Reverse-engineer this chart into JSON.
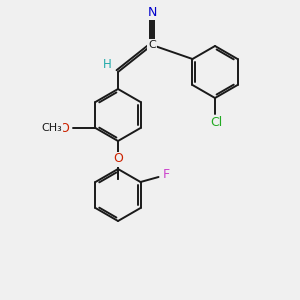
{
  "background_color": "#f0f0f0",
  "bond_color": "#1a1a1a",
  "label_colors": {
    "N": "#0000cc",
    "Cl": "#22aa22",
    "F": "#cc44cc",
    "O": "#cc2200",
    "H": "#22aaaa",
    "C": "#1a1a1a"
  },
  "figsize": [
    3.0,
    3.0
  ],
  "dpi": 100
}
